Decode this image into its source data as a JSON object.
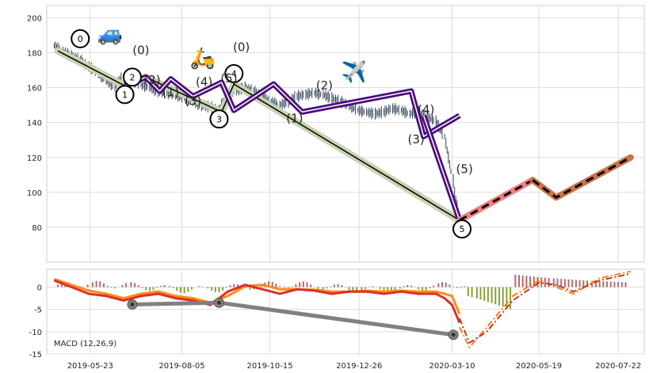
{
  "chart_data": [
    {
      "type": "line",
      "panel": "price",
      "ylim": [
        60,
        207
      ],
      "xlim": [
        "2019-04-18",
        "2020-08-12"
      ],
      "y_ticks": [
        80,
        100,
        120,
        140,
        160,
        180,
        200
      ],
      "x_ticks": [
        "2019-05-23",
        "2019-08-05",
        "2019-10-15",
        "2019-12-26",
        "2020-03-10",
        "2020-05-19",
        "2020-07-22"
      ],
      "grid": true,
      "price_series": {
        "x": [
          "2019-04-24",
          "2019-05-01",
          "2019-05-08",
          "2019-05-15",
          "2019-05-22",
          "2019-05-29",
          "2019-06-05",
          "2019-06-12",
          "2019-06-19",
          "2019-06-26",
          "2019-07-03",
          "2019-07-10",
          "2019-07-17",
          "2019-07-24",
          "2019-07-31",
          "2019-08-07",
          "2019-08-14",
          "2019-08-21",
          "2019-08-28",
          "2019-09-04",
          "2019-09-11",
          "2019-09-18",
          "2019-09-25",
          "2019-10-02",
          "2019-10-09",
          "2019-10-16",
          "2019-10-23",
          "2019-10-30",
          "2019-11-06",
          "2019-11-13",
          "2019-11-20",
          "2019-11-27",
          "2019-12-04",
          "2019-12-11",
          "2019-12-18",
          "2019-12-25",
          "2020-01-01",
          "2020-01-08",
          "2020-01-15",
          "2020-01-22",
          "2020-01-29",
          "2020-02-05",
          "2020-02-12",
          "2020-02-19",
          "2020-02-26",
          "2020-03-04",
          "2020-03-11",
          "2020-03-16"
        ],
        "y": [
          184,
          181,
          178,
          176,
          172,
          169,
          164,
          161,
          166,
          164,
          162,
          160,
          158,
          157,
          156,
          154,
          152,
          150,
          149,
          147,
          156,
          158,
          160,
          158,
          155,
          152,
          150,
          152,
          155,
          156,
          157,
          156,
          154,
          152,
          150,
          147,
          146,
          145,
          146,
          148,
          147,
          145,
          146,
          143,
          141,
          132,
          108,
          84
        ]
      },
      "wave_green": {
        "x": [
          "2019-04-27",
          "2019-06-20",
          "2019-07-07",
          "2019-09-06",
          "2019-09-16",
          "2020-03-16"
        ],
        "y": [
          181,
          161,
          166,
          146,
          162,
          84
        ]
      },
      "wave_purple": {
        "x": [
          "2019-06-20",
          "2019-07-07",
          "2019-07-18",
          "2019-07-27",
          "2019-08-14",
          "2019-09-06",
          "2019-09-16",
          "2019-10-18",
          "2019-11-10",
          "2020-02-06",
          "2020-02-16",
          "2020-03-16"
        ],
        "y": [
          161,
          166,
          158,
          165,
          155,
          163,
          147,
          162,
          146,
          158,
          132,
          144
        ]
      },
      "wave_purple_tail": {
        "x": [
          "2020-02-16",
          "2020-03-16"
        ],
        "y": [
          144,
          84
        ]
      },
      "forecast_pink": {
        "x": [
          "2020-03-16",
          "2020-05-14"
        ],
        "y": [
          84,
          107
        ]
      },
      "forecast_brown": {
        "x": [
          "2020-05-14",
          "2020-06-02",
          "2020-08-01"
        ],
        "y": [
          107,
          97,
          120
        ]
      },
      "circle_labels": [
        {
          "text": "0",
          "x": "2019-05-15",
          "y": 188
        },
        {
          "text": "1",
          "x": "2019-06-20",
          "y": 156
        },
        {
          "text": "2",
          "x": "2019-06-26",
          "y": 166
        },
        {
          "text": "3",
          "x": "2019-09-04",
          "y": 142
        },
        {
          "text": "4",
          "x": "2019-09-16",
          "y": 168
        },
        {
          "text": "5",
          "x": "2020-03-18",
          "y": 79
        }
      ],
      "wave_labels": [
        {
          "text": "(0)",
          "x": "2019-07-03",
          "y": 179
        },
        {
          "text": "(2)",
          "x": "2019-07-12",
          "y": 162
        },
        {
          "text": "(1)",
          "x": "2019-07-27",
          "y": 155
        },
        {
          "text": "(3)",
          "x": "2019-08-14",
          "y": 150
        },
        {
          "text": "(4)",
          "x": "2019-08-23",
          "y": 161
        },
        {
          "text": "(5)",
          "x": "2019-09-12",
          "y": 163
        },
        {
          "text": "(0)",
          "x": "2019-09-22",
          "y": 181
        },
        {
          "text": "(1)",
          "x": "2019-11-04",
          "y": 140
        },
        {
          "text": "(2)",
          "x": "2019-11-28",
          "y": 159
        },
        {
          "text": "(3)",
          "x": "2020-02-10",
          "y": 128
        },
        {
          "text": "(4)",
          "x": "2020-02-18",
          "y": 145
        },
        {
          "text": "(5)",
          "x": "2020-03-20",
          "y": 111
        }
      ],
      "emojis": [
        {
          "name": "car-icon",
          "glyph": "🚙",
          "x": "2019-06-08",
          "y": 187
        },
        {
          "name": "scooter-icon",
          "glyph": "🛵",
          "x": "2019-08-22",
          "y": 173
        },
        {
          "name": "airplane-icon",
          "glyph": "✈️",
          "x": "2019-12-22",
          "y": 165
        }
      ],
      "colors": {
        "price": "#37475a",
        "green_band": "#c8d3b1",
        "purple": "#4b0f7a",
        "pink": "#f08080",
        "brown": "#c8744a",
        "black": "#000000"
      }
    },
    {
      "type": "line",
      "panel": "macd",
      "title": "MACD (12,26,9)",
      "ylim": [
        -15,
        4
      ],
      "y_ticks": [
        -15,
        -10,
        -5,
        0
      ],
      "grid": true,
      "macd_series": {
        "x": [
          "2019-04-24",
          "2019-05-08",
          "2019-05-22",
          "2019-06-05",
          "2019-06-19",
          "2019-07-03",
          "2019-07-17",
          "2019-07-31",
          "2019-08-14",
          "2019-08-28",
          "2019-09-11",
          "2019-09-25",
          "2019-10-09",
          "2019-10-23",
          "2019-11-06",
          "2019-11-20",
          "2019-12-04",
          "2019-12-18",
          "2020-01-01",
          "2020-01-15",
          "2020-01-29",
          "2020-02-12",
          "2020-02-26",
          "2020-03-04",
          "2020-03-10",
          "2020-03-16"
        ],
        "macd": [
          1.5,
          0,
          -1.5,
          -2,
          -3,
          -2,
          -1.5,
          -2.5,
          -3,
          -4,
          -1,
          0.5,
          -0.5,
          -1.5,
          -0.5,
          -0.8,
          -1.5,
          -1,
          -1,
          -1.5,
          -1,
          -1.5,
          -1.5,
          -2.5,
          -4,
          -8
        ],
        "signal": [
          1.8,
          0.5,
          -0.8,
          -1.5,
          -2.5,
          -1.5,
          -1,
          -2,
          -2.5,
          -3.5,
          -2,
          0.2,
          0.5,
          -0.5,
          -0.5,
          -0.6,
          -1,
          -1,
          -0.8,
          -1,
          -0.8,
          -1,
          -1,
          -1.5,
          -2,
          -6
        ]
      },
      "forecast_macd": {
        "x": [
          "2020-03-16",
          "2020-03-24",
          "2020-04-07",
          "2020-04-28",
          "2020-05-19",
          "2020-06-02",
          "2020-06-16",
          "2020-07-07",
          "2020-08-01"
        ],
        "y": [
          -9,
          -13.5,
          -9,
          -2,
          1.5,
          0,
          -1.5,
          2,
          3.5
        ]
      },
      "forecast_signal": {
        "x": [
          "2020-03-16",
          "2020-03-24",
          "2020-04-07",
          "2020-04-28",
          "2020-05-19",
          "2020-06-02",
          "2020-06-16",
          "2020-07-07",
          "2020-08-01"
        ],
        "y": [
          -7,
          -12.5,
          -10,
          -3,
          1,
          0.5,
          -1,
          1.5,
          3
        ]
      },
      "divergence": {
        "x": [
          "2019-06-26",
          "2019-09-04",
          "2020-03-11"
        ],
        "y": [
          -3.9,
          -3.5,
          -10.7
        ]
      },
      "histogram_range": [
        "2019-04-24",
        "2020-08-01"
      ],
      "colors": {
        "macd": "#d8322a",
        "signal": "#ff8c1a",
        "hist_pos": "#b56b6b",
        "hist_neg": "#8aa036",
        "divergence": "#808080",
        "forecast_macd": "#ff7f0e",
        "forecast_signal": "#c0392b"
      }
    }
  ]
}
